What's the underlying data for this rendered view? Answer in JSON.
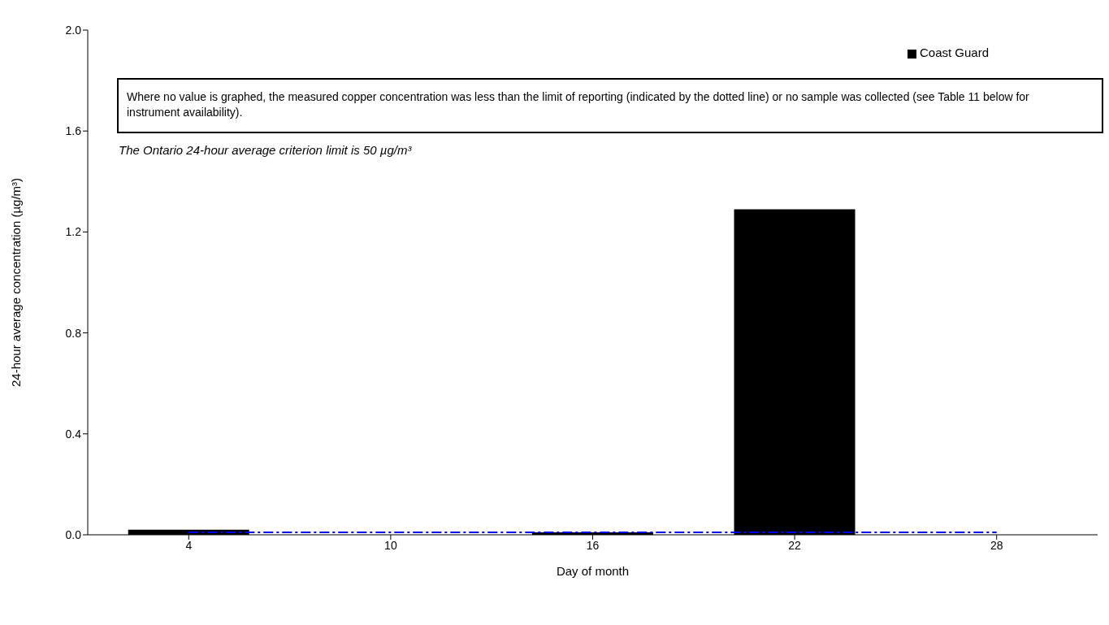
{
  "chart_data": {
    "type": "bar",
    "xlabel": "Day of month",
    "ylabel": "24-hour average concentration (µg/m³)",
    "categories": [
      "4",
      "10",
      "16",
      "22",
      "28"
    ],
    "series": [
      {
        "name": "Coast Guard",
        "color": "#000000",
        "values": [
          0.02,
          null,
          0.01,
          1.29,
          null
        ]
      }
    ],
    "ylim": [
      0,
      2
    ],
    "yticks": [
      {
        "value": 0,
        "label": "0.0"
      },
      0.4,
      0.8,
      1.2,
      1.6,
      {
        "value": 2,
        "label": "2.0"
      }
    ],
    "ref_lines": [
      {
        "axis": "y",
        "value": 0.01,
        "color": "#0000ff",
        "line_style": "dotted"
      }
    ],
    "annotations": [
      "Where no value is graphed, the measured copper concentration was less than the limit of reporting (indicated by the dotted line) or no sample was collected (see Table 11 below for instrument availability).",
      "The Ontario 24-hour average criterion limit is 50 µg/m³"
    ],
    "legend": "top right"
  }
}
